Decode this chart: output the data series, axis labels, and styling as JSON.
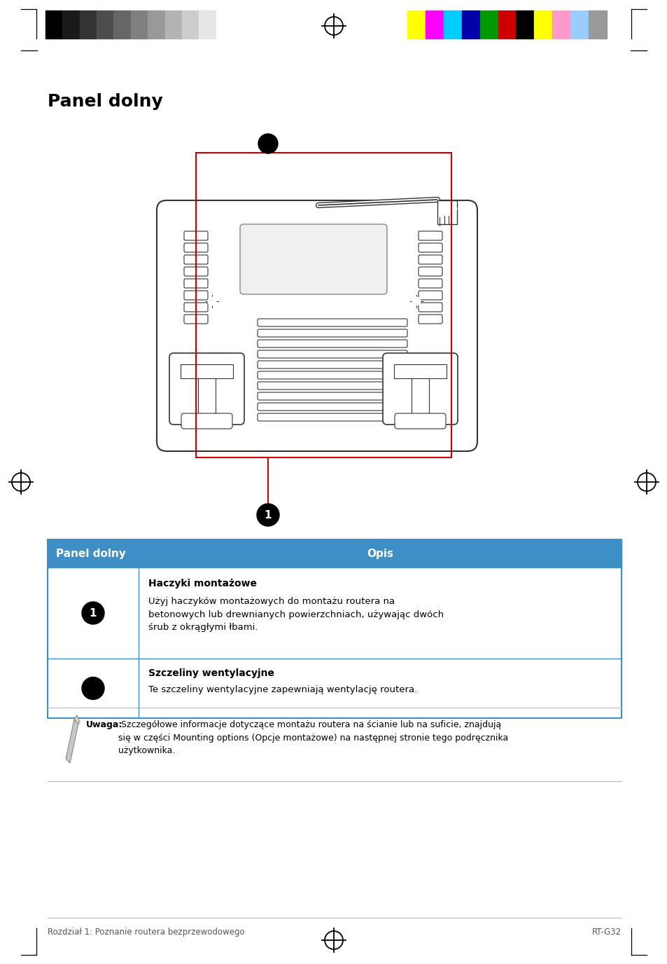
{
  "title": "Panel dolny",
  "page_bg": "#ffffff",
  "header_bg": "#3d8fc6",
  "header_text_color": "#ffffff",
  "header_col1": "Panel dolny",
  "header_col2": "Opis",
  "row1_title": "Haczyki montażowe",
  "row1_text": "Użyj haczyków montażowych do montażu routera na\nbetonowych lub drewnianych powierzchniach, używając dwóch\nśrub z okrągłymi łbami.",
  "row2_title": "Szczeliny wentylacyjne",
  "row2_text": "Te szczeliny wentylacyjne zapewniają wentylację routera.",
  "note_bold": "Uwaga:",
  "note_text": " Szczegółowe informacje dotyczące montażu routera na ścianie lub na suficie, znajdują\nsię w części Mounting options (Opcje montażowe) na następnej stronie tego podręcznika\nużytkownika.",
  "footer_left": "Rozdział 1: Poznanie routera bezprzewodowego",
  "footer_right": "RT-G32",
  "color_bar_left_colors": [
    "#000000",
    "#1a1a1a",
    "#333333",
    "#4d4d4d",
    "#666666",
    "#808080",
    "#999999",
    "#b3b3b3",
    "#cccccc",
    "#e6e6e6",
    "#ffffff"
  ],
  "color_bar_right_colors": [
    "#ffff00",
    "#ff00ff",
    "#00ccff",
    "#0000aa",
    "#009900",
    "#cc0000",
    "#000000",
    "#ffff00",
    "#ff99cc",
    "#99ccff",
    "#999999"
  ],
  "table_border_color": "#3d8fc6",
  "router_stroke": "#333333",
  "router_fill": "#ffffff",
  "red_line_color": "#cc0000"
}
